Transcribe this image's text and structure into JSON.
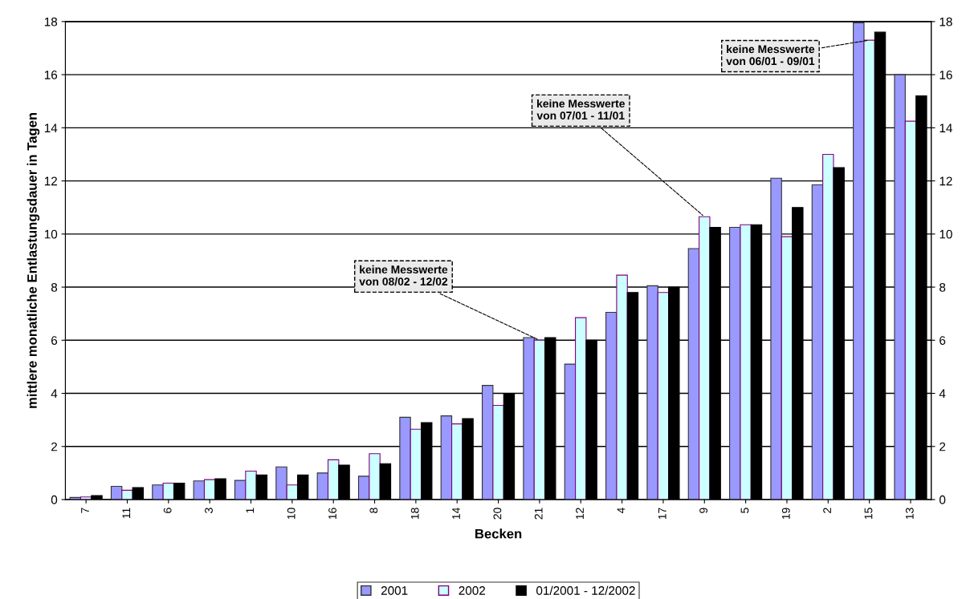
{
  "chart_data": {
    "type": "bar",
    "xlabel": "Becken",
    "ylabel": "mittlere monatliche Entlastungsdauer in Tagen",
    "categories": [
      "7",
      "11",
      "6",
      "3",
      "1",
      "10",
      "16",
      "8",
      "18",
      "14",
      "20",
      "21",
      "12",
      "4",
      "17",
      "9",
      "5",
      "19",
      "2",
      "15",
      "13"
    ],
    "series": [
      {
        "name": "2001",
        "color": "#9999ff",
        "values": [
          0.08,
          0.5,
          0.55,
          0.7,
          0.72,
          1.23,
          1.0,
          0.88,
          3.1,
          3.15,
          4.3,
          6.1,
          5.1,
          7.05,
          8.05,
          9.45,
          10.25,
          12.1,
          11.85,
          17.95,
          16.0
        ]
      },
      {
        "name": "2002",
        "color": "#ccffff",
        "values": [
          0.1,
          0.35,
          0.62,
          0.75,
          1.07,
          0.55,
          1.5,
          1.73,
          2.65,
          2.85,
          3.55,
          6.0,
          6.85,
          8.45,
          7.8,
          10.65,
          10.35,
          9.9,
          13.0,
          17.3,
          14.25
        ]
      },
      {
        "name": "01/2001 - 12/2002",
        "color": "#000000",
        "values": [
          0.15,
          0.45,
          0.62,
          0.78,
          0.93,
          0.93,
          1.3,
          1.35,
          2.9,
          3.05,
          4.0,
          6.1,
          6.0,
          7.8,
          8.0,
          10.25,
          10.35,
          11.0,
          12.5,
          17.6,
          15.2
        ]
      }
    ],
    "ylim": [
      0,
      18
    ],
    "yticks": [
      0,
      2,
      4,
      6,
      8,
      10,
      12,
      14,
      16,
      18
    ],
    "y2lim": [
      0,
      18
    ],
    "y2ticks": [
      0,
      2,
      4,
      6,
      8,
      10,
      12,
      14,
      16,
      18
    ],
    "grid": "y",
    "legend": "bottom",
    "annotations": [
      {
        "text": "keine Messwerte\nvon 08/02 - 12/02",
        "x": "21",
        "y": 6.0
      },
      {
        "text": "keine Messwerte\nvon 07/01 - 11/01",
        "x": "9",
        "y": 10.65
      },
      {
        "text": "keine Messwerte\nvon 06/01 - 09/01",
        "x": "15",
        "y": 17.3
      }
    ]
  }
}
